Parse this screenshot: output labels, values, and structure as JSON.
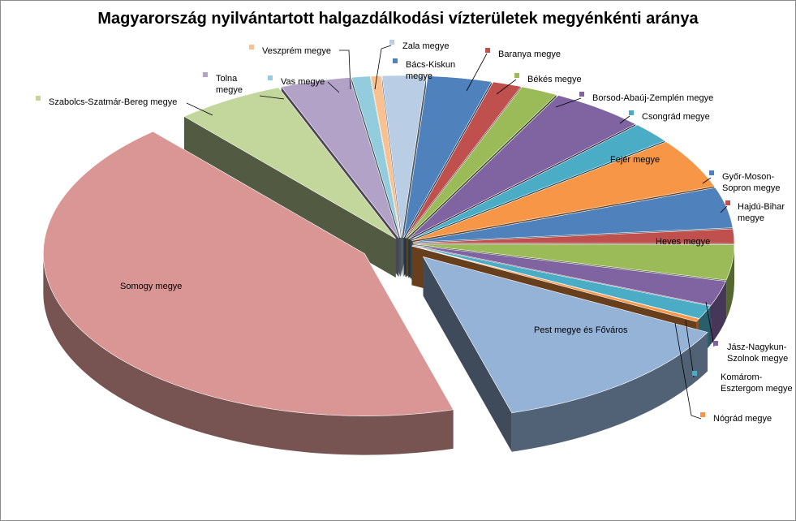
{
  "chart_data": {
    "type": "pie",
    "title": "Magyarország nyilvántartott halgazdálkodási vízterületek megyénkénti aránya",
    "legend": "none",
    "slices": [
      {
        "name": "Bács-Kiskun megye",
        "value": 3.1,
        "color": "#4F81BD"
      },
      {
        "name": "Baranya megye",
        "value": 1.4,
        "color": "#C0504D"
      },
      {
        "name": "Békés megye",
        "value": 1.8,
        "color": "#9BBB59"
      },
      {
        "name": "Borsod-Abaúj-Zemplén megye",
        "value": 4.6,
        "color": "#8064A2"
      },
      {
        "name": "Csongrád megye",
        "value": 2.0,
        "color": "#4BACC6"
      },
      {
        "name": "Fejér megye",
        "value": 4.8,
        "color": "#F79646"
      },
      {
        "name": "Győr-Moson-Sopron megye",
        "value": 3.9,
        "color": "#4F81BD"
      },
      {
        "name": "Hajdú-Bihar megye",
        "value": 1.4,
        "color": "#C0504D"
      },
      {
        "name": "Heves megye",
        "value": 3.4,
        "color": "#9BBB59"
      },
      {
        "name": "Jász-Nagykun-Szolnok megye",
        "value": 2.4,
        "color": "#8064A2"
      },
      {
        "name": "Komárom-Esztergom megye",
        "value": 1.3,
        "color": "#4BACC6"
      },
      {
        "name": "Nógrád megye",
        "value": 0.3,
        "color": "#F79646"
      },
      {
        "name": "Pest megye és Főváros",
        "value": 12.4,
        "color": "#95B3D7"
      },
      {
        "name": "Somogy megye",
        "value": 41.5,
        "color": "#D99694"
      },
      {
        "name": "Szabolcs-Szatmár-Bereg megye",
        "value": 5.3,
        "color": "#C3D69B"
      },
      {
        "name": "Tolna megye",
        "value": 3.4,
        "color": "#B3A2C7"
      },
      {
        "name": "Vas megye",
        "value": 0.9,
        "color": "#93CDDD"
      },
      {
        "name": "Veszprém megye",
        "value": 0.5,
        "color": "#FAC090"
      },
      {
        "name": "Zala megye",
        "value": 2.1,
        "color": "#B9CDE5"
      }
    ]
  },
  "labels": {
    "bacs": [
      "Bács-Kiskun",
      "megye"
    ],
    "baranya": [
      "Baranya megye"
    ],
    "bekes": [
      "Békés megye"
    ],
    "borsod": [
      "Borsod-Abaúj-Zemplén megye"
    ],
    "csongrad": [
      "Csongrád megye"
    ],
    "fejer": [
      "Fejér megye"
    ],
    "gyor": [
      "Győr-Moson-",
      "Sopron megye"
    ],
    "hajdu": [
      "Hajdú-Bihar",
      "megye"
    ],
    "heves": [
      "Heves megye"
    ],
    "jasz": [
      "Jász-Nagykun-",
      "Szolnok megye"
    ],
    "komarom": [
      "Komárom-",
      "Esztergom megye"
    ],
    "nograd": [
      "Nógrád megye"
    ],
    "pest": [
      "Pest megye és Főváros"
    ],
    "somogy": [
      "Somogy megye"
    ],
    "szabolcs": [
      "Szabolcs-Szatmár-Bereg megye"
    ],
    "tolna": [
      "Tolna",
      "megye"
    ],
    "vas": [
      "Vas megye"
    ],
    "veszprem": [
      "Veszprém megye"
    ],
    "zala": [
      "Zala megye"
    ]
  }
}
